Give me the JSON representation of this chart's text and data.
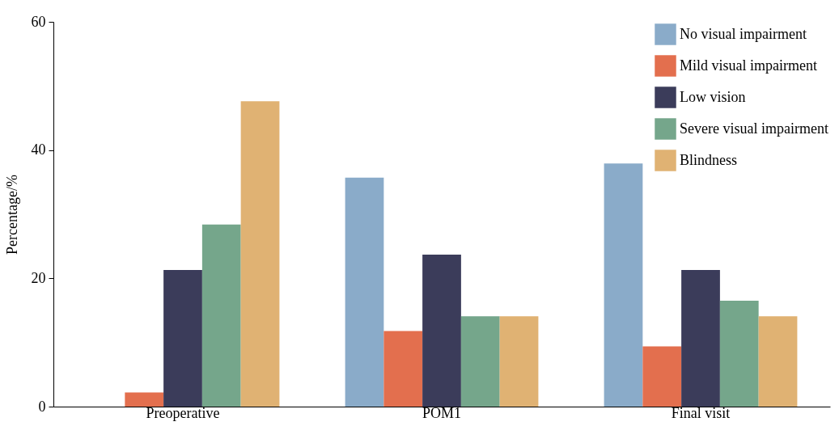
{
  "chart_data": {
    "type": "bar",
    "ylabel": "Percentage/%",
    "categories": [
      "Preoperative",
      "POM1",
      "Final visit"
    ],
    "series": [
      {
        "name": "No visual impairment",
        "color": "#8aabc9",
        "values": [
          0,
          35.7,
          37.9
        ]
      },
      {
        "name": "Mild visual impairment",
        "color": "#e36f4e",
        "values": [
          2.2,
          11.8,
          9.4
        ]
      },
      {
        "name": "Low vision",
        "color": "#3b3c5a",
        "values": [
          21.3,
          23.7,
          21.3
        ]
      },
      {
        "name": "Severe visual impairment",
        "color": "#75a68b",
        "values": [
          28.4,
          14.1,
          16.5
        ]
      },
      {
        "name": "Blindness",
        "color": "#e0b273",
        "values": [
          47.6,
          14.1,
          14.1
        ]
      }
    ],
    "ylim": [
      0,
      60
    ],
    "yticks": [
      0,
      20,
      40,
      60
    ],
    "grid": false,
    "legend": "top right"
  }
}
